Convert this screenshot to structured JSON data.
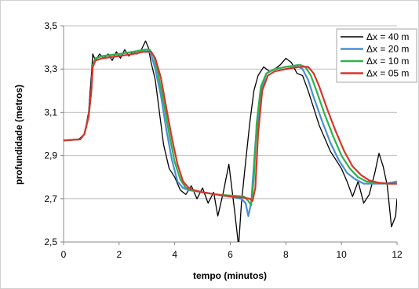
{
  "chart_data": {
    "type": "line",
    "title": "",
    "xlabel": "tempo (minutos)",
    "ylabel": "profundidade (metros)",
    "xlim": [
      0,
      12
    ],
    "ylim": [
      2.5,
      3.5
    ],
    "xticks": [
      0,
      2,
      4,
      6,
      8,
      10,
      12
    ],
    "xtick_labels": [
      "0",
      "2",
      "4",
      "6",
      "8",
      "10",
      "12"
    ],
    "yticks": [
      2.5,
      2.7,
      2.9,
      3.1,
      3.3,
      3.5
    ],
    "ytick_labels": [
      "2,5",
      "2,7",
      "2,9",
      "3,1",
      "3,3",
      "3,5"
    ],
    "grid": "horizontal",
    "legend_position": "top-right",
    "series": [
      {
        "name": "Δx = 40 m",
        "color": "#000000",
        "x": [
          0,
          0.55,
          0.75,
          0.9,
          1.0,
          1.05,
          1.15,
          1.3,
          1.45,
          1.6,
          1.75,
          1.9,
          2.05,
          2.2,
          2.35,
          2.5,
          2.65,
          2.8,
          2.95,
          3.05,
          3.15,
          3.3,
          3.45,
          3.6,
          3.8,
          4.0,
          4.2,
          4.4,
          4.6,
          4.8,
          5.0,
          5.2,
          5.4,
          5.55,
          5.75,
          5.95,
          6.15,
          6.3,
          6.4,
          6.55,
          6.7,
          6.85,
          7.0,
          7.2,
          7.4,
          7.6,
          7.8,
          8.0,
          8.2,
          8.4,
          8.6,
          8.8,
          9.0,
          9.2,
          9.4,
          9.6,
          9.8,
          10.0,
          10.2,
          10.4,
          10.6,
          10.8,
          11.0,
          11.2,
          11.35,
          11.5,
          11.65,
          11.8,
          11.95,
          12.0
        ],
        "values": [
          2.97,
          2.975,
          3.0,
          3.1,
          3.27,
          3.37,
          3.34,
          3.37,
          3.35,
          3.37,
          3.34,
          3.38,
          3.35,
          3.39,
          3.36,
          3.38,
          3.37,
          3.39,
          3.43,
          3.4,
          3.33,
          3.25,
          3.1,
          2.95,
          2.84,
          2.8,
          2.74,
          2.72,
          2.76,
          2.7,
          2.75,
          2.68,
          2.73,
          2.62,
          2.73,
          2.86,
          2.65,
          2.48,
          2.68,
          2.87,
          3.05,
          3.2,
          3.27,
          3.31,
          3.29,
          3.3,
          3.32,
          3.35,
          3.33,
          3.28,
          3.27,
          3.2,
          3.12,
          3.04,
          2.98,
          2.92,
          2.88,
          2.84,
          2.78,
          2.71,
          2.78,
          2.68,
          2.72,
          2.82,
          2.91,
          2.85,
          2.76,
          2.57,
          2.62,
          2.7
        ]
      },
      {
        "name": "Δx = 20 m",
        "color": "#4a8fd4",
        "x": [
          0,
          0.6,
          0.75,
          0.9,
          1.0,
          1.05,
          1.15,
          1.4,
          2.0,
          2.5,
          2.8,
          3.0,
          3.15,
          3.3,
          3.5,
          3.7,
          3.9,
          4.1,
          4.3,
          4.5,
          5.0,
          5.5,
          6.0,
          6.4,
          6.55,
          6.65,
          6.75,
          6.9,
          7.1,
          7.3,
          7.6,
          8.0,
          8.4,
          8.6,
          8.8,
          9.0,
          9.3,
          9.6,
          9.9,
          10.2,
          10.5,
          10.8,
          11.1,
          11.5,
          11.8,
          12.0
        ],
        "values": [
          2.97,
          2.975,
          3.0,
          3.08,
          3.2,
          3.32,
          3.35,
          3.36,
          3.37,
          3.38,
          3.385,
          3.39,
          3.37,
          3.3,
          3.18,
          3.02,
          2.88,
          2.78,
          2.75,
          2.74,
          2.73,
          2.72,
          2.71,
          2.7,
          2.68,
          2.62,
          2.68,
          2.95,
          3.2,
          3.28,
          3.3,
          3.31,
          3.315,
          3.3,
          3.25,
          3.17,
          3.06,
          2.96,
          2.88,
          2.82,
          2.79,
          2.77,
          2.77,
          2.77,
          2.775,
          2.78
        ]
      },
      {
        "name": "Δx = 10 m",
        "color": "#2db34a",
        "x": [
          0,
          0.6,
          0.75,
          0.9,
          1.0,
          1.05,
          1.15,
          1.4,
          2.0,
          2.5,
          2.9,
          3.1,
          3.25,
          3.4,
          3.6,
          3.8,
          4.0,
          4.2,
          4.4,
          4.6,
          5.0,
          5.5,
          6.0,
          6.5,
          6.65,
          6.75,
          6.85,
          6.95,
          7.1,
          7.3,
          7.6,
          8.0,
          8.5,
          8.7,
          8.9,
          9.1,
          9.4,
          9.7,
          10.0,
          10.3,
          10.6,
          10.9,
          11.2,
          11.6,
          12.0
        ],
        "values": [
          2.97,
          2.975,
          3.0,
          3.08,
          3.2,
          3.32,
          3.35,
          3.36,
          3.37,
          3.38,
          3.39,
          3.39,
          3.36,
          3.28,
          3.15,
          3.0,
          2.87,
          2.79,
          2.75,
          2.74,
          2.73,
          2.72,
          2.715,
          2.71,
          2.69,
          2.67,
          2.8,
          3.05,
          3.22,
          3.28,
          3.3,
          3.31,
          3.32,
          3.31,
          3.27,
          3.2,
          3.09,
          2.99,
          2.9,
          2.84,
          2.8,
          2.78,
          2.775,
          2.77,
          2.77
        ]
      },
      {
        "name": "Δx = 05 m",
        "color": "#d8342c",
        "x": [
          0,
          0.6,
          0.75,
          0.9,
          1.0,
          1.05,
          1.15,
          1.4,
          2.0,
          2.5,
          2.9,
          3.15,
          3.3,
          3.5,
          3.7,
          3.9,
          4.1,
          4.3,
          4.5,
          4.7,
          5.0,
          5.5,
          6.0,
          6.5,
          6.7,
          6.8,
          6.9,
          7.0,
          7.15,
          7.35,
          7.6,
          8.0,
          8.5,
          8.8,
          9.0,
          9.2,
          9.5,
          9.8,
          10.1,
          10.4,
          10.7,
          11.0,
          11.3,
          11.7,
          12.0
        ],
        "values": [
          2.97,
          2.975,
          3.0,
          3.08,
          3.2,
          3.31,
          3.34,
          3.35,
          3.36,
          3.37,
          3.38,
          3.38,
          3.35,
          3.26,
          3.12,
          2.98,
          2.86,
          2.78,
          2.75,
          2.74,
          2.73,
          2.72,
          2.71,
          2.705,
          2.7,
          2.69,
          2.75,
          3.0,
          3.2,
          3.27,
          3.29,
          3.3,
          3.31,
          3.31,
          3.28,
          3.22,
          3.11,
          3.01,
          2.92,
          2.85,
          2.81,
          2.785,
          2.775,
          2.77,
          2.77
        ]
      }
    ]
  }
}
